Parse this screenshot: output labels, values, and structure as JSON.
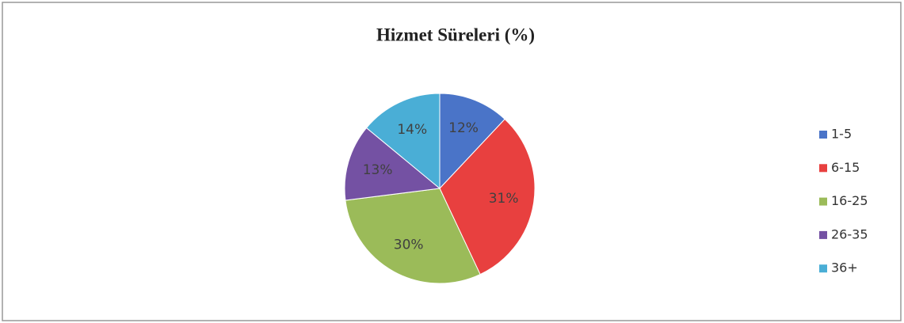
{
  "chart_data": {
    "type": "pie",
    "title": "Hizmet Süreleri (%)",
    "categories": [
      "1-5",
      "6-15",
      "16-25",
      "26-35",
      "36+"
    ],
    "values": [
      12,
      31,
      30,
      13,
      14
    ],
    "value_labels": [
      "12%",
      "31%",
      "30%",
      "13%",
      "14%"
    ],
    "colors": [
      "#4a74c8",
      "#e8403f",
      "#9bbb59",
      "#7451a3",
      "#4aaed6"
    ],
    "legend": "right"
  }
}
